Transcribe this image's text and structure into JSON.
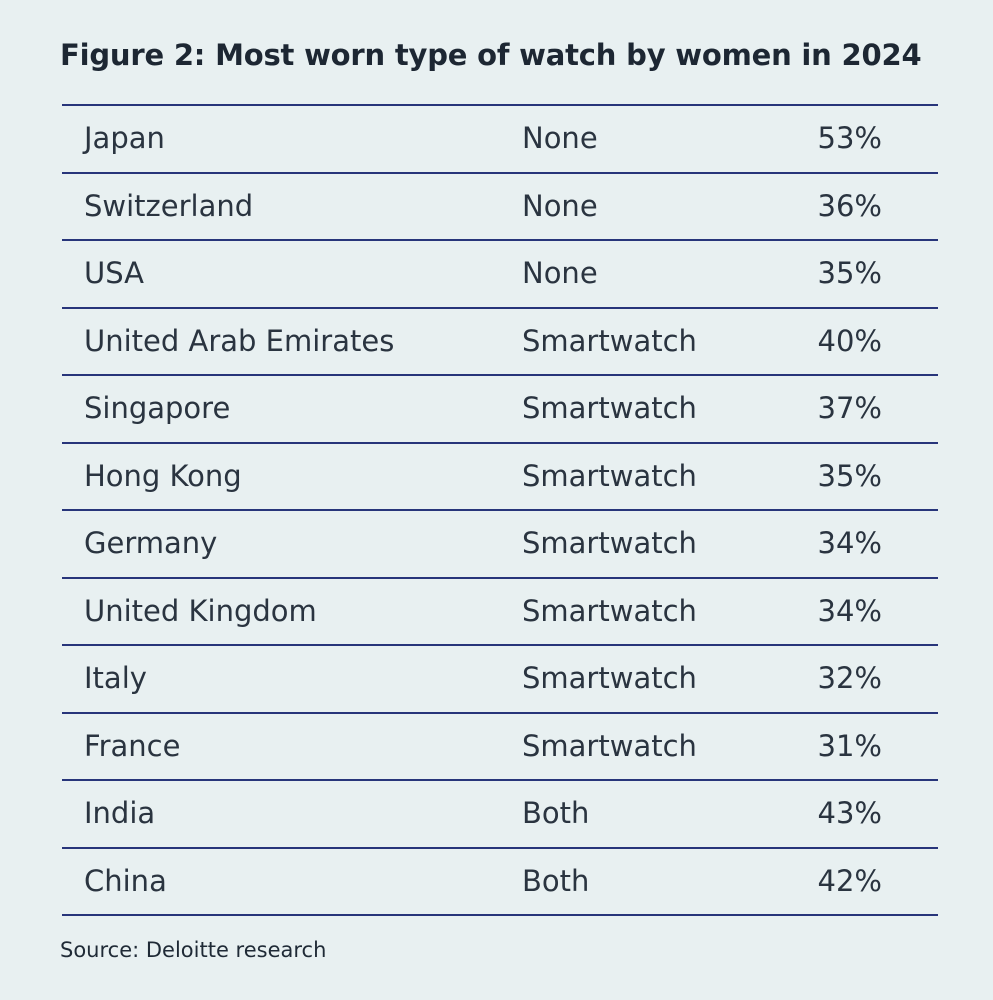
{
  "title": "Figure 2: Most worn type of watch by women in 2024",
  "source": "Source: Deloitte research",
  "colors": {
    "background": "#e8f0f1",
    "rule": "#27357a",
    "text": "#2a3440"
  },
  "chart_data": {
    "type": "table",
    "title": "Figure 2: Most worn type of watch by women in 2024",
    "rows": [
      {
        "country": "Japan",
        "type": "None",
        "value": "53%"
      },
      {
        "country": "Switzerland",
        "type": "None",
        "value": "36%"
      },
      {
        "country": "USA",
        "type": "None",
        "value": "35%"
      },
      {
        "country": "United Arab Emirates",
        "type": "Smartwatch",
        "value": "40%"
      },
      {
        "country": "Singapore",
        "type": "Smartwatch",
        "value": "37%"
      },
      {
        "country": "Hong Kong",
        "type": "Smartwatch",
        "value": "35%"
      },
      {
        "country": "Germany",
        "type": "Smartwatch",
        "value": "34%"
      },
      {
        "country": "United Kingdom",
        "type": "Smartwatch",
        "value": "34%"
      },
      {
        "country": "Italy",
        "type": "Smartwatch",
        "value": "32%"
      },
      {
        "country": "France",
        "type": "Smartwatch",
        "value": "31%"
      },
      {
        "country": "India",
        "type": "Both",
        "value": "43%"
      },
      {
        "country": "China",
        "type": "Both",
        "value": "42%"
      }
    ]
  }
}
